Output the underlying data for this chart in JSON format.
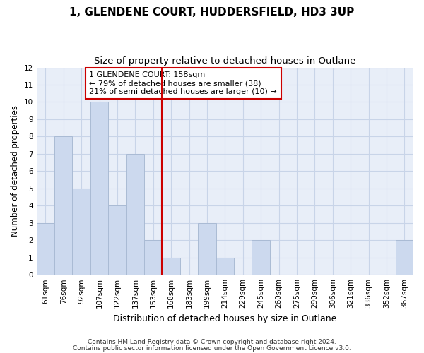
{
  "title": "1, GLENDENE COURT, HUDDERSFIELD, HD3 3UP",
  "subtitle": "Size of property relative to detached houses in Outlane",
  "xlabel": "Distribution of detached houses by size in Outlane",
  "ylabel": "Number of detached properties",
  "categories": [
    "61sqm",
    "76sqm",
    "92sqm",
    "107sqm",
    "122sqm",
    "137sqm",
    "153sqm",
    "168sqm",
    "183sqm",
    "199sqm",
    "214sqm",
    "229sqm",
    "245sqm",
    "260sqm",
    "275sqm",
    "290sqm",
    "306sqm",
    "321sqm",
    "336sqm",
    "352sqm",
    "367sqm"
  ],
  "values": [
    3,
    8,
    5,
    10,
    4,
    7,
    2,
    1,
    0,
    3,
    1,
    0,
    2,
    0,
    0,
    0,
    0,
    0,
    0,
    0,
    2
  ],
  "bar_color": "#ccd9ee",
  "bar_edgecolor": "#aabbd4",
  "vline_x": 6.5,
  "vline_color": "#cc0000",
  "annotation_text": "1 GLENDENE COURT: 158sqm\n← 79% of detached houses are smaller (38)\n21% of semi-detached houses are larger (10) →",
  "annotation_box_edgecolor": "#cc0000",
  "annotation_box_facecolor": "#ffffff",
  "ylim": [
    0,
    12
  ],
  "yticks": [
    0,
    1,
    2,
    3,
    4,
    5,
    6,
    7,
    8,
    9,
    10,
    11,
    12
  ],
  "grid_color": "#c8d4e8",
  "background_color": "#e8eef8",
  "footer1": "Contains HM Land Registry data © Crown copyright and database right 2024.",
  "footer2": "Contains public sector information licensed under the Open Government Licence v3.0.",
  "title_fontsize": 11,
  "subtitle_fontsize": 9.5,
  "xlabel_fontsize": 9,
  "ylabel_fontsize": 8.5,
  "tick_fontsize": 7.5,
  "annotation_fontsize": 8,
  "footer_fontsize": 6.5
}
